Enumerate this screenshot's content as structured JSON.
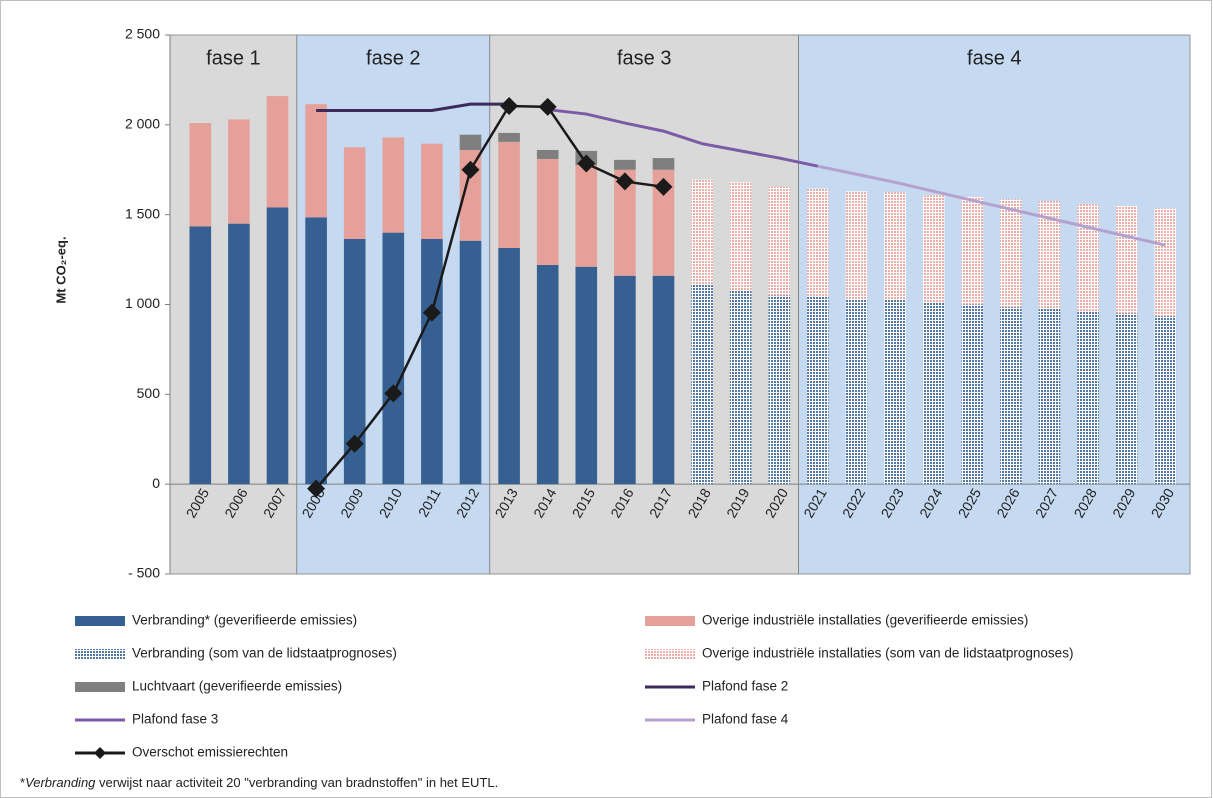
{
  "chart_data": {
    "type": "bar",
    "y_label": "Mt CO₂-eq.",
    "categories": [
      "2005",
      "2006",
      "2007",
      "2008",
      "2009",
      "2010",
      "2011",
      "2012",
      "2013",
      "2014",
      "2015",
      "2016",
      "2017",
      "2018",
      "2019",
      "2020",
      "2021",
      "2022",
      "2023",
      "2024",
      "2025",
      "2026",
      "2027",
      "2028",
      "2029",
      "2030"
    ],
    "ylim": [
      -500,
      2500
    ],
    "yticks": [
      {
        "value": -500,
        "label": "- 500"
      },
      0,
      500,
      {
        "value": 1000,
        "label": "1 000"
      },
      {
        "value": 1500,
        "label": "1 500"
      },
      {
        "value": 2000,
        "label": "2 000"
      },
      {
        "value": 2500,
        "label": "2 500"
      }
    ],
    "phases": [
      {
        "label": "fase 1",
        "start": "2005",
        "end": "2007",
        "color": "#d9d9d9"
      },
      {
        "label": "fase 2",
        "start": "2008",
        "end": "2012",
        "color": "#c5d9f1"
      },
      {
        "label": "fase 3",
        "start": "2013",
        "end": "2020",
        "color": "#d9d9d9"
      },
      {
        "label": "fase 4",
        "start": "2021",
        "end": "2030",
        "color": "#c5d9f1"
      }
    ],
    "series": [
      {
        "name": "Verbranding* (geverifieerde emissies)",
        "type": "bar",
        "color": "#366092",
        "values": [
          1435,
          1450,
          1540,
          1485,
          1365,
          1400,
          1365,
          1355,
          1315,
          1220,
          1210,
          1160,
          1160,
          null,
          null,
          null,
          null,
          null,
          null,
          null,
          null,
          null,
          null,
          null,
          null,
          null
        ]
      },
      {
        "name": "Verbranding (som van de lidstaatprognoses)",
        "type": "bar",
        "color": "#366092",
        "hatch": true,
        "values": [
          null,
          null,
          null,
          null,
          null,
          null,
          null,
          null,
          null,
          null,
          null,
          null,
          null,
          1110,
          1080,
          1050,
          1045,
          1030,
          1030,
          1010,
          1000,
          985,
          975,
          960,
          950,
          935
        ]
      },
      {
        "name": "Overige industriële installaties (geverifieerde emissies)",
        "type": "bar",
        "color": "#e6a09a",
        "values": [
          575,
          580,
          620,
          630,
          510,
          530,
          530,
          505,
          590,
          590,
          565,
          590,
          590,
          null,
          null,
          null,
          null,
          null,
          null,
          null,
          null,
          null,
          null,
          null,
          null,
          null
        ]
      },
      {
        "name": "Overige industriële installaties (som van de lidstaatprognoses)",
        "type": "bar",
        "color": "#e6a09a",
        "hatch": true,
        "values": [
          null,
          null,
          null,
          null,
          null,
          null,
          null,
          null,
          null,
          null,
          null,
          null,
          null,
          585,
          600,
          605,
          600,
          600,
          595,
          600,
          600,
          600,
          600,
          600,
          600,
          600
        ]
      },
      {
        "name": "Luchtvaart (geverifieerde emissies)",
        "type": "bar",
        "color": "#7f7f7f",
        "values": [
          null,
          null,
          null,
          null,
          null,
          null,
          null,
          85,
          50,
          50,
          80,
          55,
          65,
          null,
          null,
          null,
          null,
          null,
          null,
          null,
          null,
          null,
          null,
          null,
          null,
          null
        ]
      },
      {
        "name": "Plafond fase 2",
        "type": "line",
        "color": "#3b2a5a",
        "values": [
          null,
          null,
          null,
          2080,
          2080,
          2080,
          2080,
          2115,
          2115,
          null,
          null,
          null,
          null,
          null,
          null,
          null,
          null,
          null,
          null,
          null,
          null,
          null,
          null,
          null,
          null,
          null
        ]
      },
      {
        "name": "Plafond fase 3",
        "type": "line",
        "color": "#7b5aa6",
        "values": [
          null,
          null,
          null,
          null,
          null,
          null,
          null,
          null,
          null,
          2085,
          2060,
          2010,
          1965,
          1895,
          1855,
          1815,
          1770,
          null,
          null,
          null,
          null,
          null,
          null,
          null,
          null,
          null
        ]
      },
      {
        "name": "Plafond fase 4",
        "type": "line",
        "color": "#b3a2cf",
        "values": [
          null,
          null,
          null,
          null,
          null,
          null,
          null,
          null,
          null,
          null,
          null,
          null,
          null,
          null,
          null,
          null,
          1770,
          1725,
          1680,
          1630,
          1580,
          1530,
          1480,
          1430,
          1380,
          1330
        ]
      },
      {
        "name": "Overschot emissierechten",
        "type": "line",
        "color": "#1a1a1a",
        "marker": "diamond",
        "values": [
          null,
          null,
          null,
          -25,
          225,
          505,
          955,
          1750,
          2105,
          2100,
          1785,
          1685,
          1655,
          null,
          null,
          null,
          null,
          null,
          null,
          null,
          null,
          null,
          null,
          null,
          null,
          null
        ]
      }
    ],
    "legend_order": [
      0,
      2,
      1,
      3,
      4,
      5,
      6,
      7,
      8
    ],
    "footnote": [
      "*",
      "Verbranding",
      " verwijst naar activiteit 20 \"verbranding van bradnstoffen\" in het EUTL."
    ]
  }
}
